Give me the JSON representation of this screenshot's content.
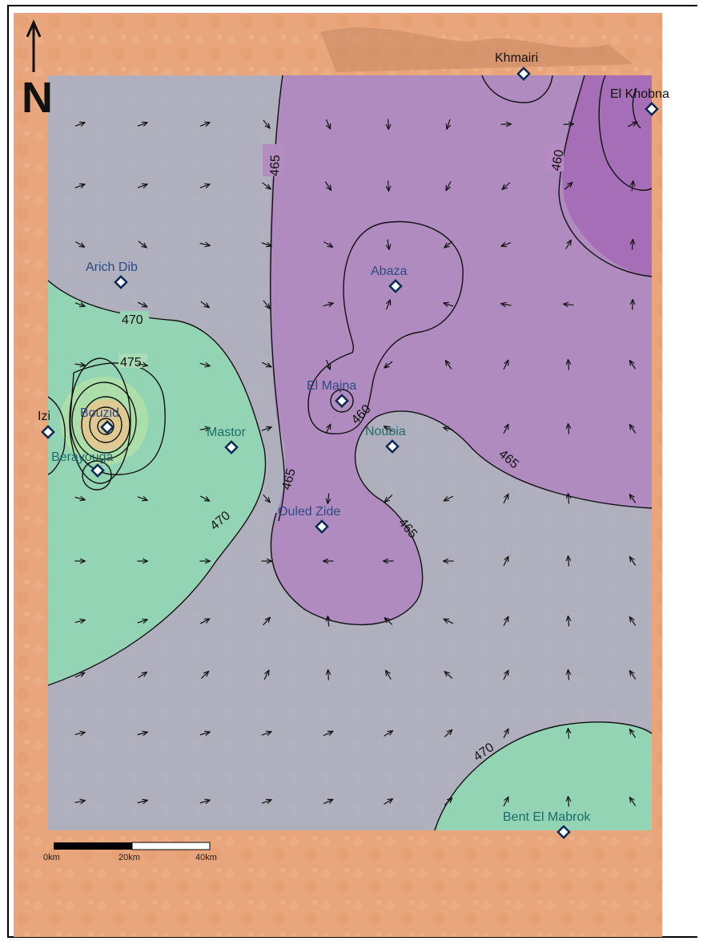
{
  "map": {
    "north_label": "N",
    "scale_bar": {
      "ticks": [
        "0km",
        "20km",
        "40km"
      ]
    },
    "colors": {
      "desert": "#e8a57a",
      "overlay_gray": "#a9aec0",
      "overlay_green": "#8fd9b0",
      "overlay_magenta": "#b07ab8",
      "contour": "#111111",
      "well_marker": "#0b2a55",
      "well_label": "#2a4b86"
    },
    "wells": [
      {
        "name": "Khmairi",
        "label_color": "#111111"
      },
      {
        "name": "El Khobna",
        "label_color": "#111111"
      },
      {
        "name": "Arich Dib",
        "label_color": "#2a4b86"
      },
      {
        "name": "Abaza",
        "label_color": "#2a4b86"
      },
      {
        "name": "El Majna",
        "label_color": "#2a4b86"
      },
      {
        "name": "Izi",
        "label_color": "#111111"
      },
      {
        "name": "Bouzid",
        "label_color": "#2a4b86"
      },
      {
        "name": "Mastor",
        "label_color": "#1f6b6b"
      },
      {
        "name": "Noubia",
        "label_color": "#1f6b6b"
      },
      {
        "name": "Berayouga",
        "label_color": "#1f6b6b"
      },
      {
        "name": "Ouled Zide",
        "label_color": "#2a4b86"
      },
      {
        "name": "Bent El Mabrok",
        "label_color": "#1f6b6b"
      }
    ],
    "contour_labels": [
      "465",
      "460",
      "470",
      "475",
      "465",
      "460",
      "465",
      "465",
      "465",
      "470",
      "470"
    ],
    "flow_arrows": {
      "description_hidden": true
    }
  }
}
